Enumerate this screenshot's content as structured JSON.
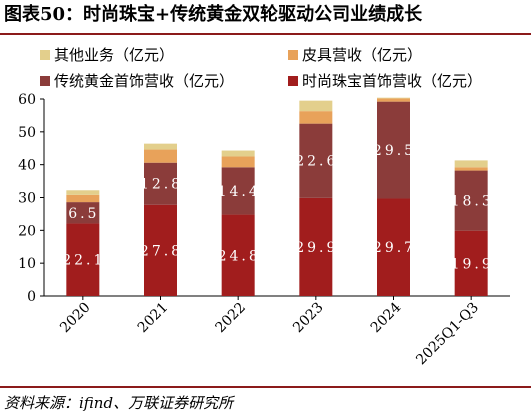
{
  "header": {
    "title": "图表50：时尚珠宝+传统黄金双轮驱动公司业绩成长"
  },
  "source_text": "资料来源：ifind、万联证券研究所",
  "colors": {
    "other": "#e3cf8c",
    "leather": "#e8a25a",
    "gold": "#8b3c3a",
    "fashion": "#a11d1d",
    "rule": "#8b1a1a"
  },
  "chart_data": {
    "type": "bar",
    "stacked": true,
    "title": "",
    "xlabel": "",
    "ylabel": "",
    "ylim": [
      0,
      60
    ],
    "yticks": [
      "0",
      "10",
      "20",
      "30",
      "40",
      "50",
      "60"
    ],
    "categories": [
      "2020",
      "2021",
      "2022",
      "2023",
      "2024",
      "2025Q1-Q3"
    ],
    "legend_position": "top",
    "series": [
      {
        "name": "时尚珠宝首饰营收（亿元）",
        "color_key": "fashion",
        "values": [
          22.1,
          27.8,
          24.8,
          29.9,
          29.7,
          19.9
        ],
        "labels": [
          "22.1",
          "27.8",
          "24.8",
          "29.9",
          "29.7",
          "19.9"
        ]
      },
      {
        "name": "传统黄金首饰营收（亿元）",
        "color_key": "gold",
        "values": [
          6.5,
          12.8,
          14.4,
          22.6,
          29.5,
          18.3
        ],
        "labels": [
          "6.5",
          "12.8",
          "14.4",
          "22.6",
          "29.5",
          "18.3"
        ]
      },
      {
        "name": "皮具营收（亿元）",
        "color_key": "leather",
        "values": [
          2.2,
          4.0,
          3.3,
          3.8,
          1.0,
          1.0
        ],
        "labels": []
      },
      {
        "name": "其他业务（亿元）",
        "color_key": "other",
        "values": [
          1.4,
          1.8,
          1.8,
          3.2,
          0.2,
          2.1
        ],
        "labels": []
      }
    ],
    "legend": [
      "其他业务（亿元）",
      "皮具营收（亿元）",
      "传统黄金首饰营收（亿元）",
      "时尚珠宝首饰营收（亿元）"
    ]
  }
}
